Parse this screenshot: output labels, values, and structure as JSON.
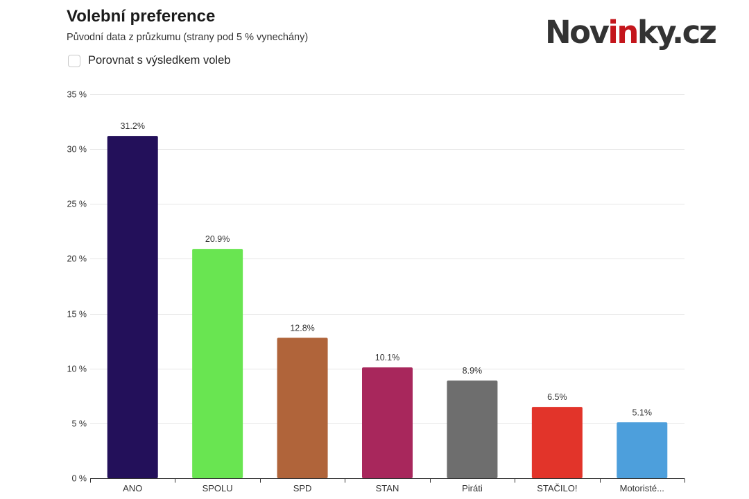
{
  "header": {
    "title": "Volební preference",
    "subtitle": "Původní data z průzkumu (strany pod 5 % vynechány)",
    "compare_label": "Porovnat s výsledkem voleb",
    "compare_checked": false
  },
  "logo": {
    "part1": "Nov",
    "part2": "in",
    "part3": "ky.cz",
    "text_color": "#333333",
    "accent_color": "#c4161c"
  },
  "chart_data": {
    "type": "bar",
    "categories": [
      "ANO",
      "SPOLU",
      "SPD",
      "STAN",
      "Piráti",
      "STAČILO!",
      "Motoristé..."
    ],
    "values": [
      31.2,
      20.9,
      12.8,
      10.1,
      8.9,
      6.5,
      5.1
    ],
    "value_labels": [
      "31.2%",
      "20.9%",
      "12.8%",
      "10.1%",
      "8.9%",
      "6.5%",
      "5.1%"
    ],
    "colors": [
      "#23105a",
      "#69e551",
      "#b0643a",
      "#a8275c",
      "#6e6e6e",
      "#e2342a",
      "#4d9fdc"
    ],
    "ylim": [
      0,
      35
    ],
    "yticks": [
      0,
      5,
      10,
      15,
      20,
      25,
      30,
      35
    ],
    "ytick_labels": [
      "0 %",
      "5 %",
      "10 %",
      "15 %",
      "20 %",
      "25 %",
      "30 %",
      "35 %"
    ],
    "grid": true,
    "legend": "none"
  }
}
